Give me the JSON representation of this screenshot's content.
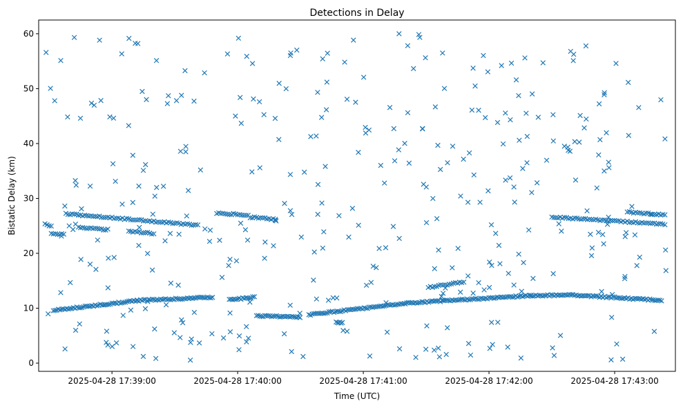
{
  "chart_data": {
    "type": "scatter",
    "title": "Detections in Delay",
    "xlabel": "Time (UTC)",
    "ylabel": "Bistatic Delay (km)",
    "marker": "x",
    "marker_color": "#1f77b4",
    "grid": false,
    "legend": "none",
    "xlim": [
      "2025-04-28T17:38:25",
      "2025-04-28T17:43:29"
    ],
    "ylim": [
      -1.5,
      62.5
    ],
    "x_ticks": [
      {
        "t": "2025-04-28T17:39:00",
        "label": "2025-04-28 17:39:00"
      },
      {
        "t": "2025-04-28T17:40:00",
        "label": "2025-04-28 17:40:00"
      },
      {
        "t": "2025-04-28T17:41:00",
        "label": "2025-04-28 17:41:00"
      },
      {
        "t": "2025-04-28T17:42:00",
        "label": "2025-04-28 17:42:00"
      },
      {
        "t": "2025-04-28T17:43:00",
        "label": "2025-04-28 17:43:00"
      }
    ],
    "y_ticks": [
      0,
      10,
      20,
      30,
      40,
      50,
      60
    ],
    "time_start": "2025-04-28T17:38:28",
    "time_end": "2025-04-28T17:43:25",
    "tracks": [
      {
        "type": "line",
        "t_start": "2025-04-28T17:38:32",
        "t_end": "2025-04-28T17:39:12",
        "y_start": 9.6,
        "y_end": 11.4,
        "step_s": 0.8
      },
      {
        "type": "line",
        "t_start": "2025-04-28T17:39:12",
        "t_end": "2025-04-28T17:39:48",
        "y_start": 11.4,
        "y_end": 12.0,
        "step_s": 0.8
      },
      {
        "type": "line",
        "t_start": "2025-04-28T17:39:56",
        "t_end": "2025-04-28T17:40:08",
        "y_start": 11.5,
        "y_end": 12.0,
        "step_s": 0.8
      },
      {
        "type": "line",
        "t_start": "2025-04-28T17:40:09",
        "t_end": "2025-04-28T17:40:30",
        "y_start": 8.6,
        "y_end": 8.4,
        "step_s": 0.8
      },
      {
        "type": "line",
        "t_start": "2025-04-28T17:40:34",
        "t_end": "2025-04-28T17:41:20",
        "y_start": 8.8,
        "y_end": 10.9,
        "step_s": 0.8
      },
      {
        "type": "line",
        "t_start": "2025-04-28T17:41:20",
        "t_end": "2025-04-28T17:42:20",
        "y_start": 10.9,
        "y_end": 12.3,
        "step_s": 0.8
      },
      {
        "type": "line",
        "t_start": "2025-04-28T17:42:20",
        "t_end": "2025-04-28T17:42:40",
        "y_start": 12.3,
        "y_end": 12.4,
        "step_s": 0.8
      },
      {
        "type": "line",
        "t_start": "2025-04-28T17:42:40",
        "t_end": "2025-04-28T17:43:23",
        "y_start": 12.4,
        "y_end": 11.4,
        "step_s": 0.8
      },
      {
        "type": "line",
        "t_start": "2025-04-28T17:41:31",
        "t_end": "2025-04-28T17:41:48",
        "y_start": 13.8,
        "y_end": 14.8,
        "step_s": 1.0
      },
      {
        "type": "line",
        "t_start": "2025-04-28T17:40:47",
        "t_end": "2025-04-28T17:40:50",
        "y_start": 7.4,
        "y_end": 7.4,
        "step_s": 0.6
      },
      {
        "type": "line",
        "t_start": "2025-04-28T17:38:28",
        "t_end": "2025-04-28T17:38:31",
        "y_start": 25.3,
        "y_end": 25.0,
        "step_s": 1.0
      },
      {
        "type": "line",
        "t_start": "2025-04-28T17:38:31",
        "t_end": "2025-04-28T17:38:37",
        "y_start": 23.6,
        "y_end": 23.5,
        "step_s": 1.0
      },
      {
        "type": "line",
        "t_start": "2025-04-28T17:38:38",
        "t_end": "2025-04-28T17:39:41",
        "y_start": 27.2,
        "y_end": 25.1,
        "step_s": 1.0
      },
      {
        "type": "line",
        "t_start": "2025-04-28T17:38:44",
        "t_end": "2025-04-28T17:38:58",
        "y_start": 24.7,
        "y_end": 24.3,
        "step_s": 1.0
      },
      {
        "type": "line",
        "t_start": "2025-04-28T17:39:08",
        "t_end": "2025-04-28T17:39:20",
        "y_start": 24.0,
        "y_end": 23.6,
        "step_s": 1.0
      },
      {
        "type": "line",
        "t_start": "2025-04-28T17:39:50",
        "t_end": "2025-04-28T17:40:05",
        "y_start": 27.3,
        "y_end": 27.0,
        "step_s": 1.0
      },
      {
        "type": "line",
        "t_start": "2025-04-28T17:40:06",
        "t_end": "2025-04-28T17:40:18",
        "y_start": 26.6,
        "y_end": 26.2,
        "step_s": 1.0
      },
      {
        "type": "line",
        "t_start": "2025-04-28T17:42:30",
        "t_end": "2025-04-28T17:43:24",
        "y_start": 26.6,
        "y_end": 25.3,
        "step_s": 1.0
      },
      {
        "type": "line",
        "t_start": "2025-04-28T17:43:06",
        "t_end": "2025-04-28T17:43:24",
        "y_start": 27.5,
        "y_end": 27.0,
        "step_s": 1.0
      }
    ],
    "clutter": {
      "count": 380,
      "y_range": [
        0.5,
        60
      ],
      "seed": 20250428
    }
  }
}
